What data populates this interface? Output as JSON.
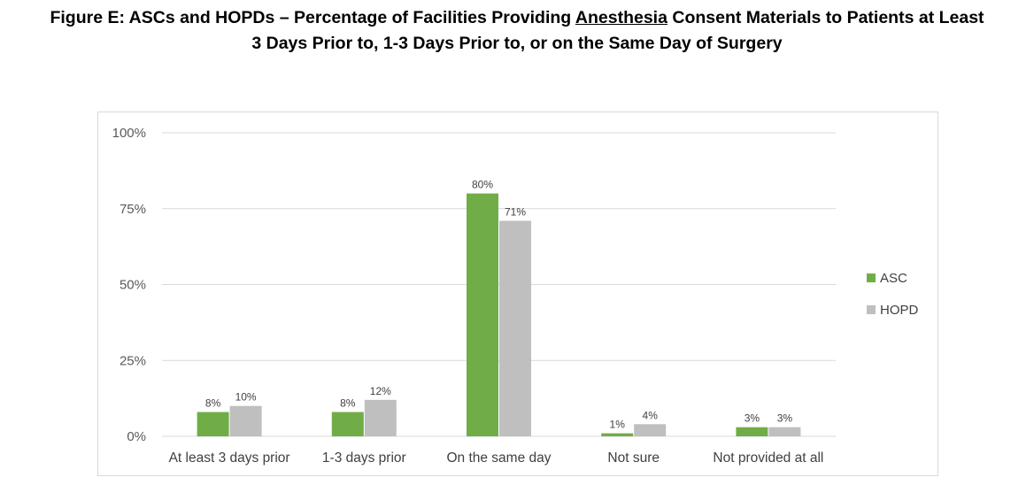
{
  "title": {
    "prefix": "Figure E: ASCs and HOPDs – Percentage of Facilities Providing ",
    "underlined": "Anesthesia",
    "suffix_line1": " Consent Materials to Patients at Least",
    "line2": "3 Days Prior to, 1-3 Days Prior to, or on the Same Day of Surgery"
  },
  "chart_data": {
    "type": "bar",
    "categories": [
      "At least 3 days prior",
      "1-3 days prior",
      "On the same day",
      "Not sure",
      "Not provided at all"
    ],
    "series": [
      {
        "name": "ASC",
        "values": [
          8,
          8,
          80,
          1,
          3
        ],
        "labels": [
          "8%",
          "8%",
          "80%",
          "1%",
          "3%"
        ],
        "color": "#70ad47"
      },
      {
        "name": "HOPD",
        "values": [
          10,
          12,
          71,
          4,
          3
        ],
        "labels": [
          "10%",
          "12%",
          "71%",
          "4%",
          "3%"
        ],
        "color": "#bfbfbf"
      }
    ],
    "ylim": [
      0,
      100
    ],
    "yticks": [
      0,
      25,
      50,
      75,
      100
    ],
    "ytick_labels": [
      "0%",
      "25%",
      "50%",
      "75%",
      "100%"
    ],
    "grid": true,
    "legend_position": "right",
    "gridline_color": "#d9d9d9"
  }
}
